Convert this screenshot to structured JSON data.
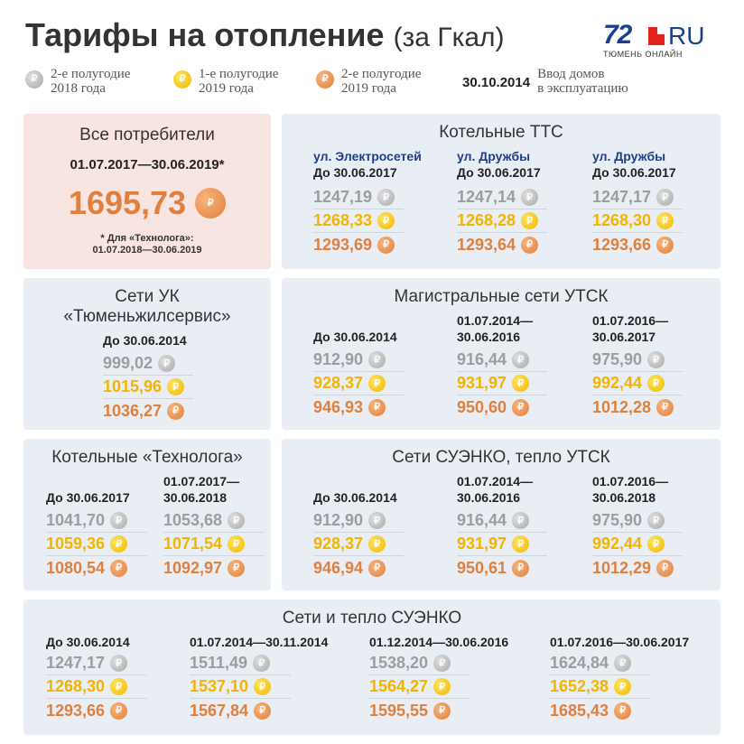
{
  "header": {
    "title_main": "Тарифы на отопление",
    "title_sub": "(за Гкал)",
    "logo_number": "72",
    "logo_ru": "RU",
    "logo_tagline": "ТЮМЕНЬ ОНЛАЙН"
  },
  "legend": [
    {
      "text": "2-е полугодие\n2018 года",
      "coin": "silver-coin-icon"
    },
    {
      "text": "1-е полугодие\n2019 года",
      "coin": "gold-coin-icon"
    },
    {
      "text": "2-е полугодие\n2019 года",
      "coin": "bronze-coin-icon"
    }
  ],
  "legend_date": "30.10.2014",
  "legend_date_text": "Ввод домов\nв эксплуатацию",
  "colors": {
    "silver": "#9d9d9d",
    "gold": "#f2b400",
    "bronze": "#e0803e",
    "panel": "#e9eef4",
    "highlight": "#f8e4e1"
  },
  "all_consumers": {
    "title": "Все потребители",
    "period": "01.07.2017—30.06.2019*",
    "value": "1695,73",
    "note": "* Для «Технолога»:\n01.07.2018—30.06.2019"
  },
  "boiler_tts": {
    "title": "Котельные ТТС",
    "columns": [
      {
        "street": "ул. Электросетей",
        "period": "До 30.06.2017",
        "values": [
          "1247,19",
          "1268,33",
          "1293,69"
        ]
      },
      {
        "street": "ул. Дружбы",
        "period": "До 30.06.2017",
        "values": [
          "1247,14",
          "1268,28",
          "1293,64"
        ]
      },
      {
        "street": "ул. Дружбы",
        "period": "До 30.06.2017",
        "values": [
          "1247,17",
          "1268,30",
          "1293,66"
        ]
      }
    ]
  },
  "uk_networks": {
    "title_line1": "Сети УК",
    "title_line2": "«Тюменьжилсервис»",
    "period": "До 30.06.2014",
    "values": [
      "999,02",
      "1015,96",
      "1036,27"
    ]
  },
  "utsk_main": {
    "title": "Магистральные сети УТСК",
    "columns": [
      {
        "period": "До 30.06.2014",
        "values": [
          "912,90",
          "928,37",
          "946,93"
        ]
      },
      {
        "period": "01.07.2014—\n30.06.2016",
        "values": [
          "916,44",
          "931,97",
          "950,60"
        ]
      },
      {
        "period": "01.07.2016—\n30.06.2017",
        "values": [
          "975,90",
          "992,44",
          "1012,28"
        ]
      }
    ]
  },
  "tekhnolog": {
    "title": "Котельные «Технолога»",
    "columns": [
      {
        "period": "До 30.06.2017",
        "values": [
          "1041,70",
          "1059,36",
          "1080,54"
        ]
      },
      {
        "period": "01.07.2017—\n30.06.2018",
        "values": [
          "1053,68",
          "1071,54",
          "1092,97"
        ]
      }
    ]
  },
  "suenko_utsk": {
    "title": "Сети СУЭНКО, тепло УТСК",
    "columns": [
      {
        "period": "До 30.06.2014",
        "values": [
          "912,90",
          "928,37",
          "946,94"
        ]
      },
      {
        "period": "01.07.2014—\n30.06.2016",
        "values": [
          "916,44",
          "931,97",
          "950,61"
        ]
      },
      {
        "period": "01.07.2016—\n30.06.2018",
        "values": [
          "975,90",
          "992,44",
          "1012,29"
        ]
      }
    ]
  },
  "suenko": {
    "title": "Сети  и тепло СУЭНКО",
    "columns": [
      {
        "period": "До 30.06.2014",
        "values": [
          "1247,17",
          "1268,30",
          "1293,66"
        ]
      },
      {
        "period": "01.07.2014—30.11.2014",
        "values": [
          "1511,49",
          "1537,10",
          "1567,84"
        ]
      },
      {
        "period": "01.12.2014—30.06.2016",
        "values": [
          "1538,20",
          "1564,27",
          "1595,55"
        ]
      },
      {
        "period": "01.07.2016—30.06.2017",
        "values": [
          "1624,84",
          "1652,38",
          "1685,43"
        ]
      }
    ]
  }
}
